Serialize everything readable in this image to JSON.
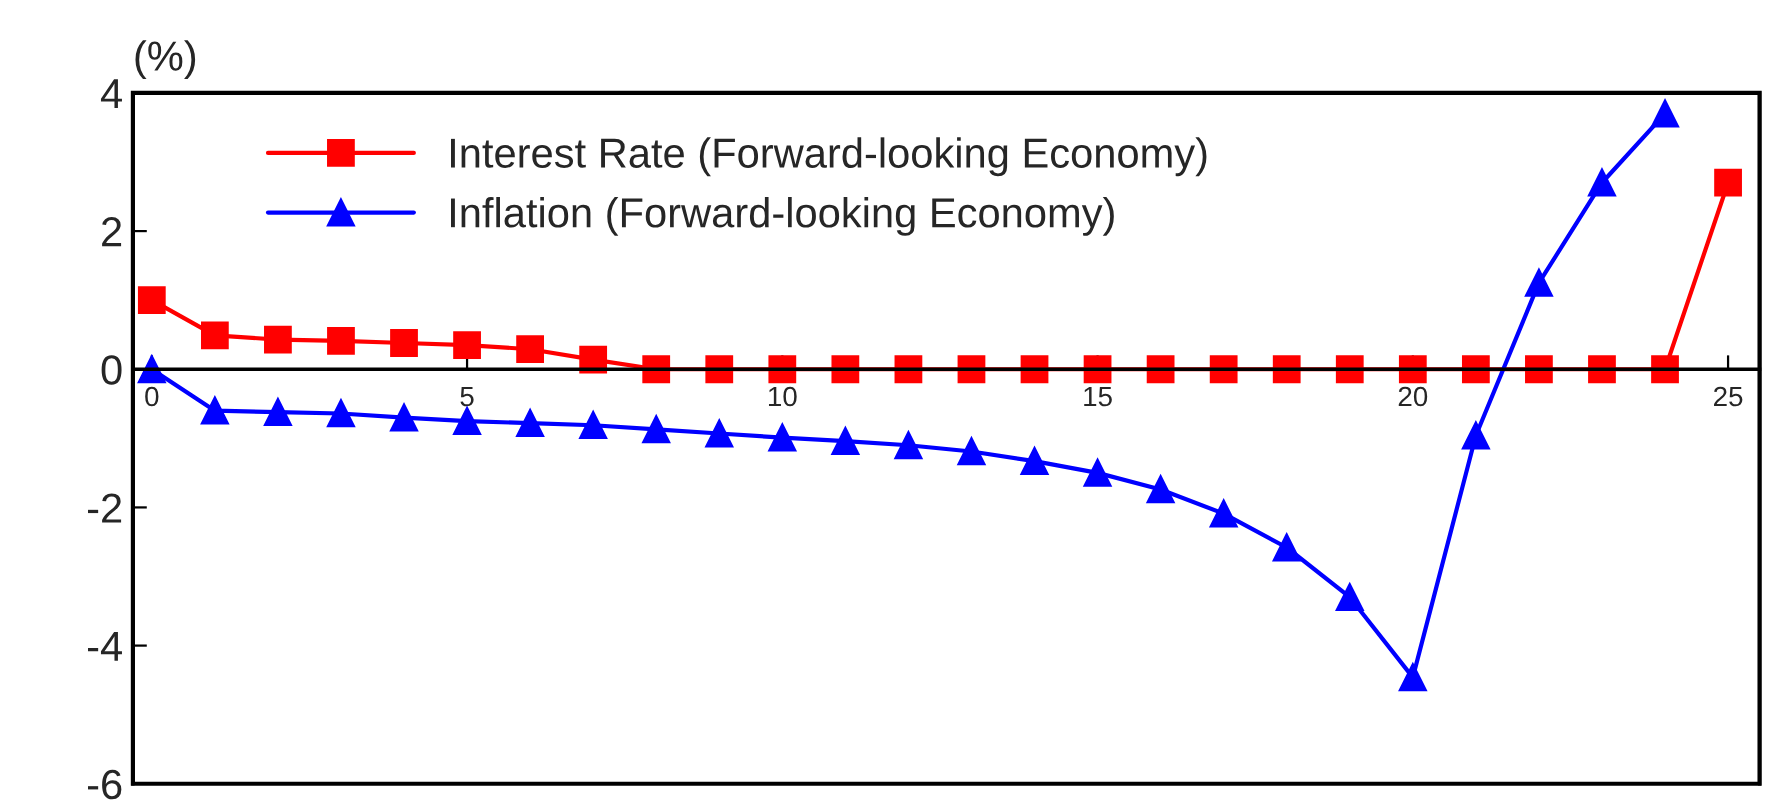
{
  "chart_data": {
    "type": "line",
    "ylabel": "(%)",
    "x": [
      0,
      1,
      2,
      3,
      4,
      5,
      6,
      7,
      8,
      9,
      10,
      11,
      12,
      13,
      14,
      15,
      16,
      17,
      18,
      19,
      20,
      21,
      22,
      23,
      24,
      25
    ],
    "series": [
      {
        "name": "Interest Rate (Forward-looking Economy)",
        "color": "#ff0000",
        "marker": "square",
        "values": [
          1.0,
          0.49,
          0.43,
          0.41,
          0.38,
          0.35,
          0.29,
          0.14,
          0,
          0,
          0,
          0,
          0,
          0,
          0,
          0,
          0,
          0,
          0,
          0,
          0,
          0,
          0,
          0,
          0,
          2.7
        ]
      },
      {
        "name": "Inflation (Forward-looking Economy)",
        "color": "#0000ff",
        "marker": "triangle",
        "values": [
          0,
          -0.6,
          -0.62,
          -0.64,
          -0.7,
          -0.75,
          -0.78,
          -0.81,
          -0.87,
          -0.93,
          -0.99,
          -1.04,
          -1.1,
          -1.19,
          -1.33,
          -1.5,
          -1.74,
          -2.09,
          -2.58,
          -3.3,
          -4.46,
          -0.96,
          1.25,
          2.7,
          3.7,
          null
        ]
      }
    ],
    "xlim": [
      -0.3,
      25.5
    ],
    "ylim": [
      -6,
      4
    ],
    "xticks": [
      0,
      5,
      10,
      15,
      20,
      25
    ],
    "yticks": [
      -6,
      -4,
      -2,
      0,
      2,
      4
    ],
    "grid": false,
    "legend": "top left",
    "line_style": "solid"
  }
}
